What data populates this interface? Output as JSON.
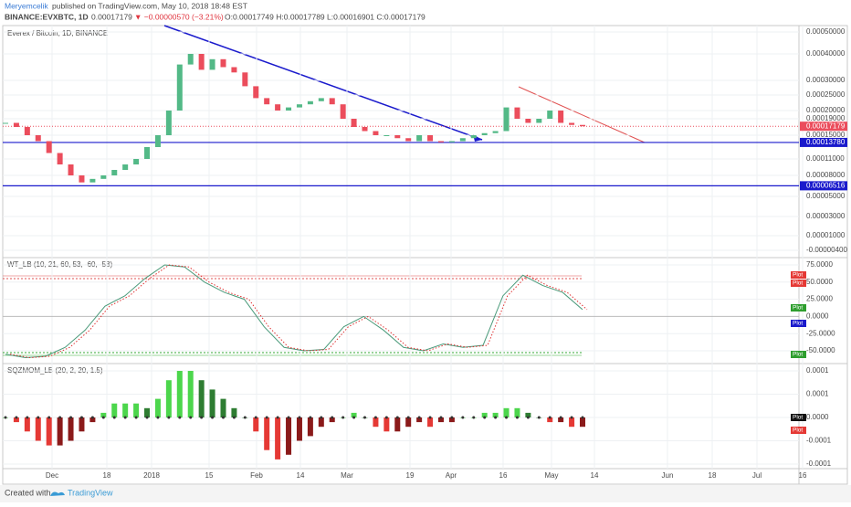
{
  "header": {
    "author": "Meryemcelik",
    "published": "published on TradingView.com, May 10, 2018 18:48 EST",
    "symbol": "BINANCE:EVXBTC, 1D",
    "last": "0.00017179",
    "change": "▼ −0.00000570 (−3.21%)",
    "ohlc": "O:0.00017749 H:0.00017789 L:0.00016901 C:0.00017179"
  },
  "main": {
    "type": "candlestick",
    "title": "Everex / Bitcoin, 1D, BINANCE",
    "log": false,
    "closes": [
      0.00018,
      0.00017,
      0.00015,
      0.00014,
      0.00012,
      0.0001,
      8e-05,
      7e-05,
      7.5e-05,
      8e-05,
      9e-05,
      0.0001,
      0.00011,
      0.00013,
      0.00015,
      0.0002,
      0.00036,
      0.0004,
      0.00034,
      0.00038,
      0.00035,
      0.00033,
      0.00028,
      0.00024,
      0.00022,
      0.0002,
      0.00021,
      0.00022,
      0.00023,
      0.00024,
      0.00022,
      0.00019,
      0.00017,
      0.00016,
      0.00015,
      0.00015,
      0.000145,
      0.00014,
      0.00015,
      0.00014,
      0.000138,
      0.00014,
      0.000145,
      0.00015,
      0.000155,
      0.00016,
      0.00021,
      0.00019,
      0.00018,
      0.00019,
      0.0002,
      0.00018,
      0.000175,
      0.00017179
    ],
    "up_color": "#53b987",
    "down_color": "#eb4d5c",
    "yticks": [
      {
        "value": 0.0005,
        "label": "0.00050000"
      },
      {
        "value": 0.0004,
        "label": "0.00040000"
      },
      {
        "value": 0.0003,
        "label": "0.00030000"
      },
      {
        "value": 0.00025,
        "label": "0.00025000"
      },
      {
        "value": 0.0002,
        "label": "0.00020000"
      },
      {
        "value": 0.00019,
        "label": "0.00019000"
      },
      {
        "value": 0.00015,
        "label": "0.00015000"
      },
      {
        "value": 0.00011,
        "label": "0.00011000"
      },
      {
        "value": 8e-05,
        "label": "0.00008000"
      },
      {
        "value": 5e-05,
        "label": "0.00005000"
      },
      {
        "value": 3e-05,
        "label": "0.00003000"
      },
      {
        "value": 1e-05,
        "label": "0.00001000"
      },
      {
        "value": -4e-06,
        "label": "-0.00000400"
      }
    ],
    "levels": [
      {
        "value": 0.0001378,
        "label": "0.00013780"
      },
      {
        "value": 6.516e-05,
        "label": "0.00006516"
      }
    ],
    "last_price": {
      "value": 0.00017179,
      "label": "0.00017179"
    }
  },
  "wt": {
    "type": "line",
    "title": "WT_LB (10, 21, 60, 53, -60, -53)",
    "values": [
      -55,
      -60,
      -58,
      -45,
      -20,
      15,
      30,
      55,
      75,
      72,
      50,
      35,
      25,
      -15,
      -45,
      -50,
      -48,
      -15,
      0,
      -20,
      -45,
      -50,
      -40,
      -45,
      -42,
      30,
      60,
      45,
      35,
      10
    ],
    "yticks": [
      {
        "value": 75,
        "label": "75.0000"
      },
      {
        "value": 50,
        "label": "50.0000"
      },
      {
        "value": 25,
        "label": "25.0000"
      },
      {
        "value": 0,
        "label": "0.0000"
      },
      {
        "value": -25,
        "label": "-25.0000"
      },
      {
        "value": -50,
        "label": "-50.0000"
      }
    ],
    "badges": [
      "Plot",
      "Plot",
      "Plot",
      "Plot",
      "Plot"
    ]
  },
  "sqz": {
    "type": "bar",
    "title": "SQZMOM_LB (20, 2, 20, 1.5)",
    "values": [
      0,
      -1e-05,
      -3e-05,
      -5e-05,
      -6e-05,
      -6e-05,
      -5e-05,
      -3e-05,
      -1e-05,
      1e-05,
      3e-05,
      3e-05,
      3e-05,
      2e-05,
      4e-05,
      8e-05,
      0.0001,
      0.0001,
      8e-05,
      6e-05,
      4e-05,
      2e-05,
      0,
      -3e-05,
      -7e-05,
      -9e-05,
      -8e-05,
      -5e-05,
      -4e-05,
      -2e-05,
      -1e-05,
      0,
      1e-05,
      0,
      -2e-05,
      -3e-05,
      -3e-05,
      -2e-05,
      -1e-05,
      -2e-05,
      -1e-05,
      -1e-05,
      0,
      0,
      1e-05,
      1e-05,
      2e-05,
      2e-05,
      1e-05,
      0,
      -1e-05,
      -1e-05,
      -2e-05,
      -2e-05
    ],
    "yticks": [
      {
        "value": 0.0001,
        "label": "0.0001"
      },
      {
        "value": 5e-05,
        "label": "0.0001"
      },
      {
        "value": 0,
        "label": "0.0000"
      },
      {
        "value": -5e-05,
        "label": "-0.0001"
      },
      {
        "value": -0.0001,
        "label": "-0.0001"
      }
    ],
    "badges": [
      "Plot",
      "Plot"
    ]
  },
  "xaxis": [
    "Dec",
    "18",
    "2018",
    "15",
    "Feb",
    "14",
    "Mar",
    "19",
    "Apr",
    "16",
    "May",
    "14",
    "Jun",
    "18",
    "Jul",
    "16"
  ],
  "footer": {
    "created": "Created with",
    "brand": "TradingView"
  }
}
